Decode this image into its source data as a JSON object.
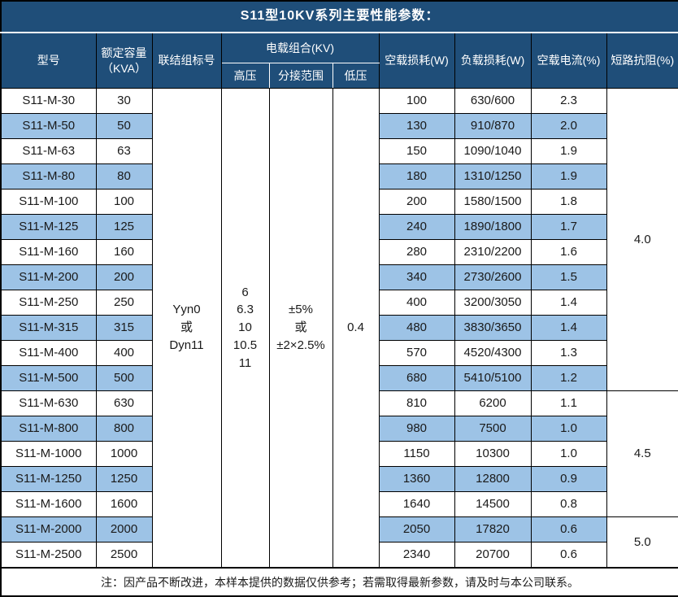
{
  "title": "S11型10KV系列主要性能参数：",
  "colors": {
    "header_bg": "#1F4E79",
    "header_text": "#FFFFFF",
    "row_alt_bg": "#9DC3E6",
    "row_bg": "#FFFFFF",
    "border": "#000000",
    "body_text": "#1A1A1A"
  },
  "header": {
    "model": "型号",
    "capacity_line1": "额定容量",
    "capacity_line2": "（KVA）",
    "vector_group": "联结组标号",
    "voltage_combo": "电载组合(KV)",
    "hv": "高压",
    "tap_range": "分接范围",
    "lv": "低压",
    "no_load_loss": "空载损耗(W)",
    "load_loss": "负载损耗(W)",
    "no_load_current": "空载电流(%)",
    "impedance": "短路抗阻(%)"
  },
  "merged": {
    "vector_group_lines": [
      "Yyn0",
      "或",
      "Dyn11"
    ],
    "hv_lines": [
      "6",
      "6.3",
      "10",
      "10.5",
      "11"
    ],
    "tap_range_lines": [
      "±5%",
      "或",
      "±2×2.5%"
    ],
    "lv": "0.4"
  },
  "impedance_groups": [
    {
      "value": "4.0",
      "rows": 12
    },
    {
      "value": "4.5",
      "rows": 5
    },
    {
      "value": "5.0",
      "rows": 2
    }
  ],
  "rows": [
    {
      "model": "S11-M-30",
      "capacity": "30",
      "no_load_loss": "100",
      "load_loss": "630/600",
      "no_load_current": "2.3"
    },
    {
      "model": "S11-M-50",
      "capacity": "50",
      "no_load_loss": "130",
      "load_loss": "910/870",
      "no_load_current": "2.0"
    },
    {
      "model": "S11-M-63",
      "capacity": "63",
      "no_load_loss": "150",
      "load_loss": "1090/1040",
      "no_load_current": "1.9"
    },
    {
      "model": "S11-M-80",
      "capacity": "80",
      "no_load_loss": "180",
      "load_loss": "1310/1250",
      "no_load_current": "1.9"
    },
    {
      "model": "S11-M-100",
      "capacity": "100",
      "no_load_loss": "200",
      "load_loss": "1580/1500",
      "no_load_current": "1.8"
    },
    {
      "model": "S11-M-125",
      "capacity": "125",
      "no_load_loss": "240",
      "load_loss": "1890/1800",
      "no_load_current": "1.7"
    },
    {
      "model": "S11-M-160",
      "capacity": "160",
      "no_load_loss": "280",
      "load_loss": "2310/2200",
      "no_load_current": "1.6"
    },
    {
      "model": "S11-M-200",
      "capacity": "200",
      "no_load_loss": "340",
      "load_loss": "2730/2600",
      "no_load_current": "1.5"
    },
    {
      "model": "S11-M-250",
      "capacity": "250",
      "no_load_loss": "400",
      "load_loss": "3200/3050",
      "no_load_current": "1.4"
    },
    {
      "model": "S11-M-315",
      "capacity": "315",
      "no_load_loss": "480",
      "load_loss": "3830/3650",
      "no_load_current": "1.4"
    },
    {
      "model": "S11-M-400",
      "capacity": "400",
      "no_load_loss": "570",
      "load_loss": "4520/4300",
      "no_load_current": "1.3"
    },
    {
      "model": "S11-M-500",
      "capacity": "500",
      "no_load_loss": "680",
      "load_loss": "5410/5100",
      "no_load_current": "1.2"
    },
    {
      "model": "S11-M-630",
      "capacity": "630",
      "no_load_loss": "810",
      "load_loss": "6200",
      "no_load_current": "1.1"
    },
    {
      "model": "S11-M-800",
      "capacity": "800",
      "no_load_loss": "980",
      "load_loss": "7500",
      "no_load_current": "1.0"
    },
    {
      "model": "S11-M-1000",
      "capacity": "1000",
      "no_load_loss": "1150",
      "load_loss": "10300",
      "no_load_current": "1.0"
    },
    {
      "model": "S11-M-1250",
      "capacity": "1250",
      "no_load_loss": "1360",
      "load_loss": "12800",
      "no_load_current": "0.9"
    },
    {
      "model": "S11-M-1600",
      "capacity": "1600",
      "no_load_loss": "1640",
      "load_loss": "14500",
      "no_load_current": "0.8"
    },
    {
      "model": "S11-M-2000",
      "capacity": "2000",
      "no_load_loss": "2050",
      "load_loss": "17820",
      "no_load_current": "0.6"
    },
    {
      "model": "S11-M-2500",
      "capacity": "2500",
      "no_load_loss": "2340",
      "load_loss": "20700",
      "no_load_current": "0.6"
    }
  ],
  "note": "注：因产品不断改进，本样本提供的数据仅供参考；若需取得最新参数，请及时与本公司联系。"
}
